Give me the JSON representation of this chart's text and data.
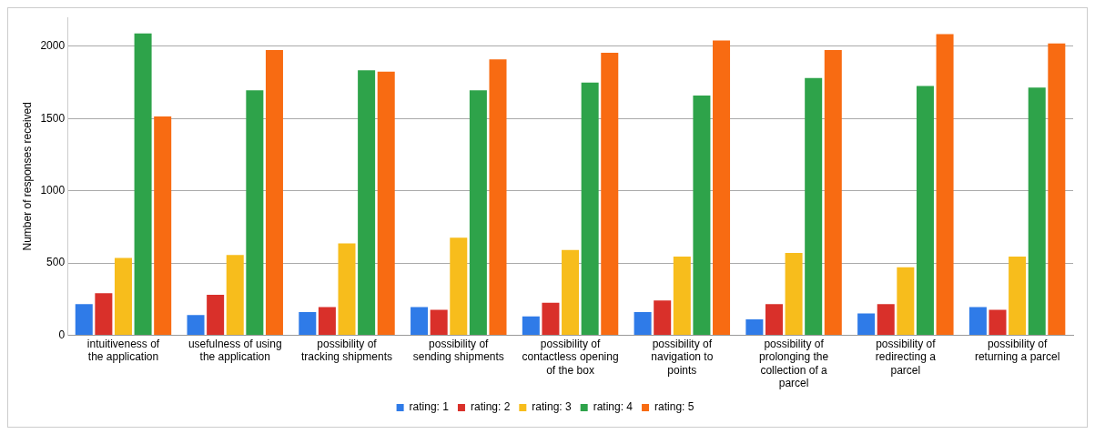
{
  "chart_data": {
    "type": "bar",
    "ylabel": "Number of responses received",
    "categories": [
      "intuitiveness of the application",
      "usefulness of using the application",
      "possibility of tracking shipments",
      "possibility of sending shipments",
      "possibility of contactless opening of the box",
      "possibility of navigation to points",
      "possibility of prolonging the collection of a parcel",
      "possibility of redirecting a parcel",
      "possibility of returning a parcel"
    ],
    "series": [
      {
        "name": "rating: 1",
        "color": "#2f7be8",
        "values": [
          215,
          140,
          160,
          195,
          130,
          160,
          110,
          150,
          195
        ]
      },
      {
        "name": "rating: 2",
        "color": "#d9302a",
        "values": [
          290,
          280,
          195,
          175,
          225,
          240,
          215,
          215,
          175
        ]
      },
      {
        "name": "rating: 3",
        "color": "#f7bd1c",
        "values": [
          535,
          555,
          635,
          675,
          590,
          545,
          570,
          470,
          545
        ]
      },
      {
        "name": "rating: 4",
        "color": "#2ea34a",
        "values": [
          2090,
          1695,
          1835,
          1695,
          1750,
          1660,
          1780,
          1725,
          1715
        ]
      },
      {
        "name": "rating: 5",
        "color": "#f86b12",
        "values": [
          1515,
          1975,
          1825,
          1910,
          1955,
          2040,
          1975,
          2085,
          2020
        ]
      }
    ],
    "ylim": [
      0,
      2200
    ],
    "yticks": [
      0,
      500,
      1000,
      1500,
      2000
    ],
    "grid": "y",
    "legend": "bottom"
  }
}
